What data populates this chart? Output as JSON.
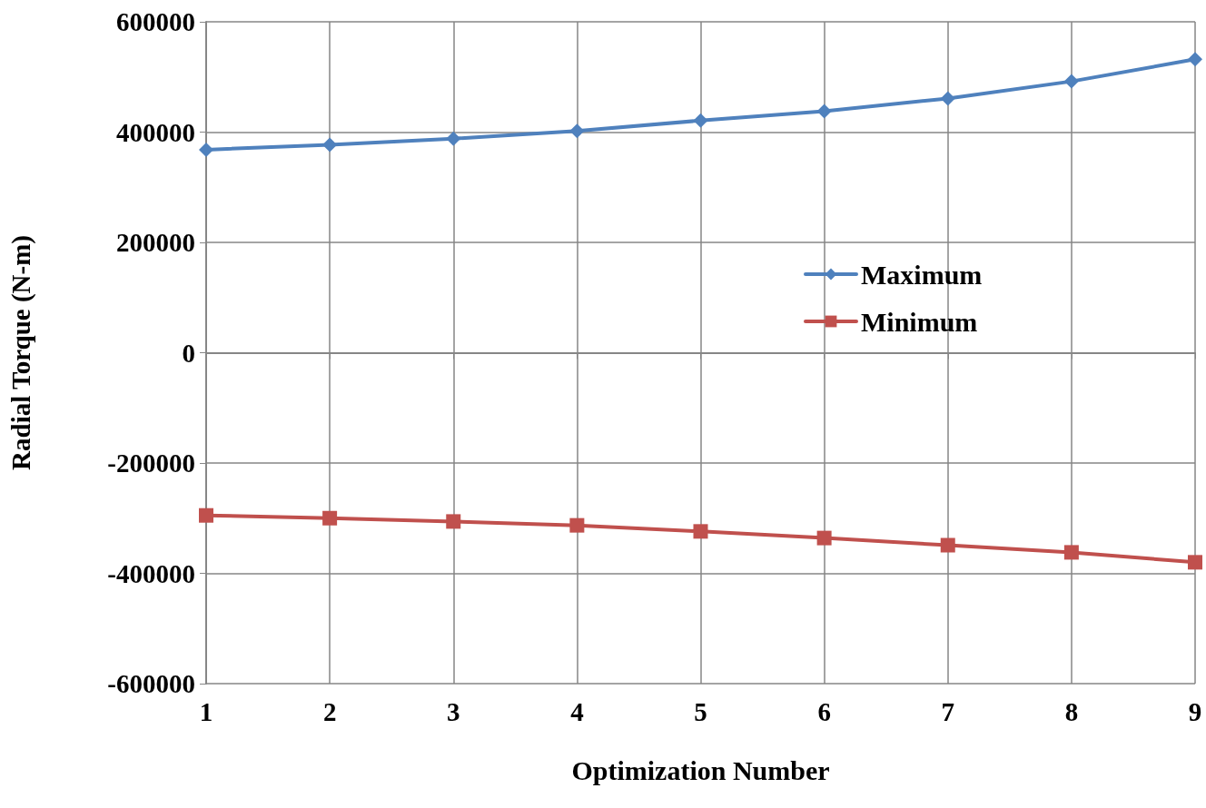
{
  "chart_data": {
    "type": "line",
    "xlabel": "Optimization Number",
    "ylabel": "Radial Torque (N-m)",
    "categories": [
      "1",
      "2",
      "3",
      "4",
      "5",
      "6",
      "7",
      "8",
      "9"
    ],
    "series": [
      {
        "name": "Maximum",
        "color": "#4f81bd",
        "marker": "diamond",
        "values": [
          368000,
          377000,
          388000,
          402000,
          421000,
          438000,
          461000,
          492000,
          532000
        ]
      },
      {
        "name": "Minimum",
        "color": "#c0504d",
        "marker": "square",
        "values": [
          -295000,
          -300000,
          -306000,
          -313000,
          -324000,
          -336000,
          -349000,
          -362000,
          -380000
        ]
      }
    ],
    "ylim": [
      -600000,
      600000
    ],
    "yticks": [
      -600000,
      -400000,
      -200000,
      0,
      200000,
      400000,
      600000
    ],
    "grid": true,
    "legend": "right",
    "line_style": "solid"
  }
}
